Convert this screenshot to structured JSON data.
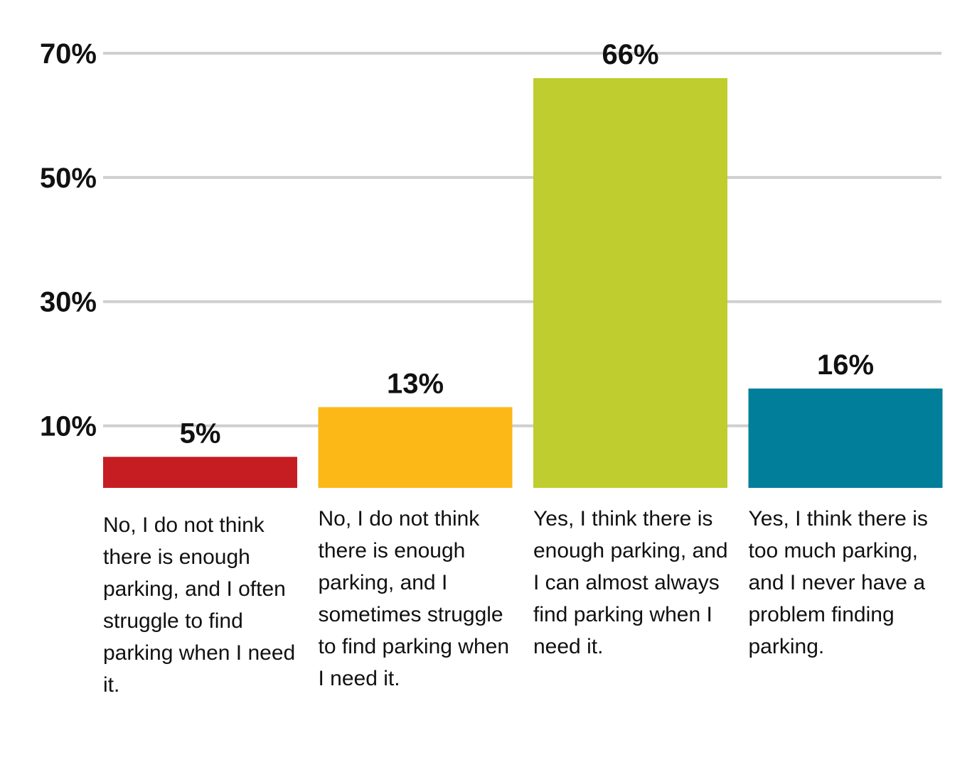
{
  "chart_data": {
    "type": "bar",
    "categories": [
      "No, I do not think there is enough parking, and I often struggle to find parking when I need it.",
      "No, I do not think there is enough parking, and I sometimes struggle to find parking when I need it.",
      "Yes, I think there is enough parking, and I can almost always find parking when I need it.",
      "Yes, I think there is too much parking, and I never have a problem finding parking."
    ],
    "values": [
      5,
      13,
      66,
      16
    ],
    "value_labels": [
      "5%",
      "13%",
      "66%",
      "16%"
    ],
    "colors": [
      "#c61d23",
      "#fbb817",
      "#bfcd2e",
      "#007e9a"
    ],
    "yticks": [
      10,
      30,
      50,
      70
    ],
    "ytick_labels": [
      "10%",
      "30%",
      "50%",
      "70%"
    ],
    "ylim": [
      0,
      70
    ],
    "grid": true,
    "legend": "none",
    "title": "",
    "xlabel": "",
    "ylabel": ""
  }
}
